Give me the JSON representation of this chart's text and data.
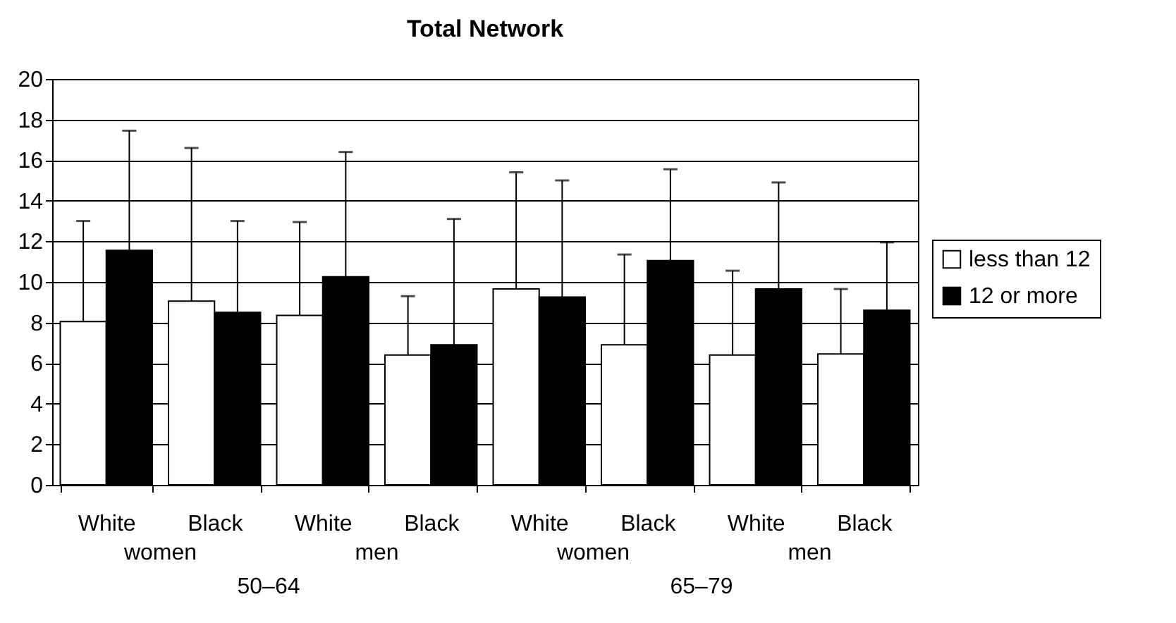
{
  "chart_data": {
    "type": "bar",
    "title": "Total Network",
    "categories": [
      "White",
      "Black",
      "White",
      "Black",
      "White",
      "Black",
      "White",
      "Black"
    ],
    "series": [
      {
        "name": "less than 12",
        "color": "#ffffff",
        "values": [
          8.05,
          9.05,
          8.35,
          6.4,
          9.65,
          6.9,
          6.4,
          6.45
        ],
        "errors": [
          [
            8.05,
            13.0
          ],
          [
            9.05,
            16.6
          ],
          [
            8.35,
            12.95
          ],
          [
            6.4,
            9.3
          ],
          [
            9.65,
            15.4
          ],
          [
            6.9,
            11.35
          ],
          [
            6.4,
            10.55
          ],
          [
            6.45,
            9.65
          ]
        ]
      },
      {
        "name": "12 or more",
        "color": "#000000",
        "values": [
          11.55,
          8.5,
          10.25,
          6.9,
          9.25,
          11.05,
          9.65,
          8.6
        ],
        "errors": [
          [
            11.55,
            17.45
          ],
          [
            8.5,
            13.0
          ],
          [
            10.25,
            16.4
          ],
          [
            6.9,
            13.1
          ],
          [
            9.25,
            15.0
          ],
          [
            11.05,
            15.55
          ],
          [
            9.65,
            14.9
          ],
          [
            8.6,
            11.95
          ]
        ]
      }
    ],
    "annotations": [
      "women",
      "men",
      "women",
      "men",
      "50–64",
      "65–79"
    ],
    "ylim": [
      0,
      20
    ],
    "yticks": [
      0,
      2,
      4,
      6,
      8,
      10,
      12,
      14,
      16,
      18,
      20
    ],
    "grid": "y",
    "legend": "right"
  }
}
